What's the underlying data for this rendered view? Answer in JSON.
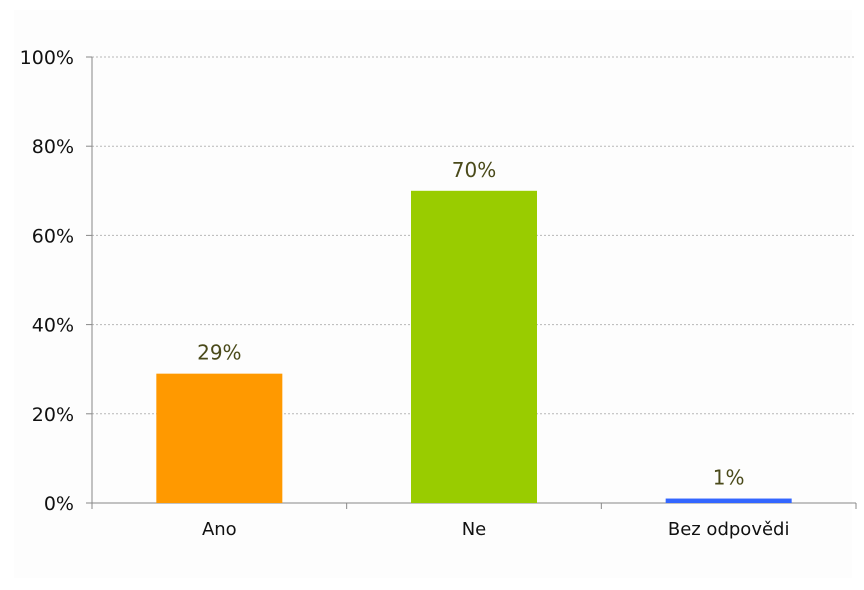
{
  "chart_data": {
    "type": "bar",
    "categories": [
      "Ano",
      "Ne",
      "Bez odpovědi"
    ],
    "values": [
      29,
      70,
      1
    ],
    "data_labels": [
      "29%",
      "70%",
      "1%"
    ],
    "bar_colors": [
      "#ff9900",
      "#99cc00",
      "#3366ff"
    ],
    "ylim": [
      0,
      100
    ],
    "yticks": [
      0,
      20,
      40,
      60,
      80,
      100
    ],
    "ytick_labels": [
      "0%",
      "20%",
      "40%",
      "60%",
      "80%",
      "100%"
    ],
    "grid": true,
    "legend": "none",
    "title": "",
    "xlabel": "",
    "ylabel": ""
  }
}
